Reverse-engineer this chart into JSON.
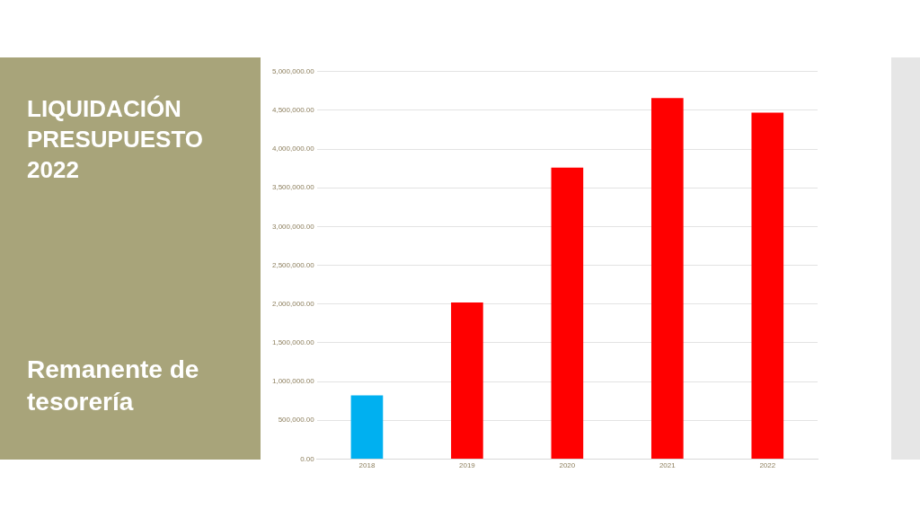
{
  "chart_data": {
    "type": "bar",
    "title": "LIQUIDACIÓN PRESUPUESTO 2022",
    "subtitle": "Remanente de tesorería",
    "categories": [
      "2018",
      "2019",
      "2020",
      "2021",
      "2022"
    ],
    "values": [
      820000,
      2020000,
      3760000,
      4660000,
      4470000
    ],
    "colors": [
      "#00b0f0",
      "#ff0000",
      "#ff0000",
      "#ff0000",
      "#ff0000"
    ],
    "ylim": [
      0,
      5000000
    ],
    "yticks": [
      {
        "value": 0,
        "label": "0.00"
      },
      {
        "value": 500000,
        "label": "500,000.00"
      },
      {
        "value": 1000000,
        "label": "1,000,000.00"
      },
      {
        "value": 1500000,
        "label": "1,500,000.00"
      },
      {
        "value": 2000000,
        "label": "2,000,000.00"
      },
      {
        "value": 2500000,
        "label": "2,500,000.00"
      },
      {
        "value": 3000000,
        "label": "3,000,000.00"
      },
      {
        "value": 3500000,
        "label": "3,500,000.00"
      },
      {
        "value": 4000000,
        "label": "4,000,000.00"
      },
      {
        "value": 4500000,
        "label": "4,500,000.00"
      },
      {
        "value": 5000000,
        "label": "5,000,000.00"
      }
    ],
    "grid": "y",
    "legend": false
  }
}
